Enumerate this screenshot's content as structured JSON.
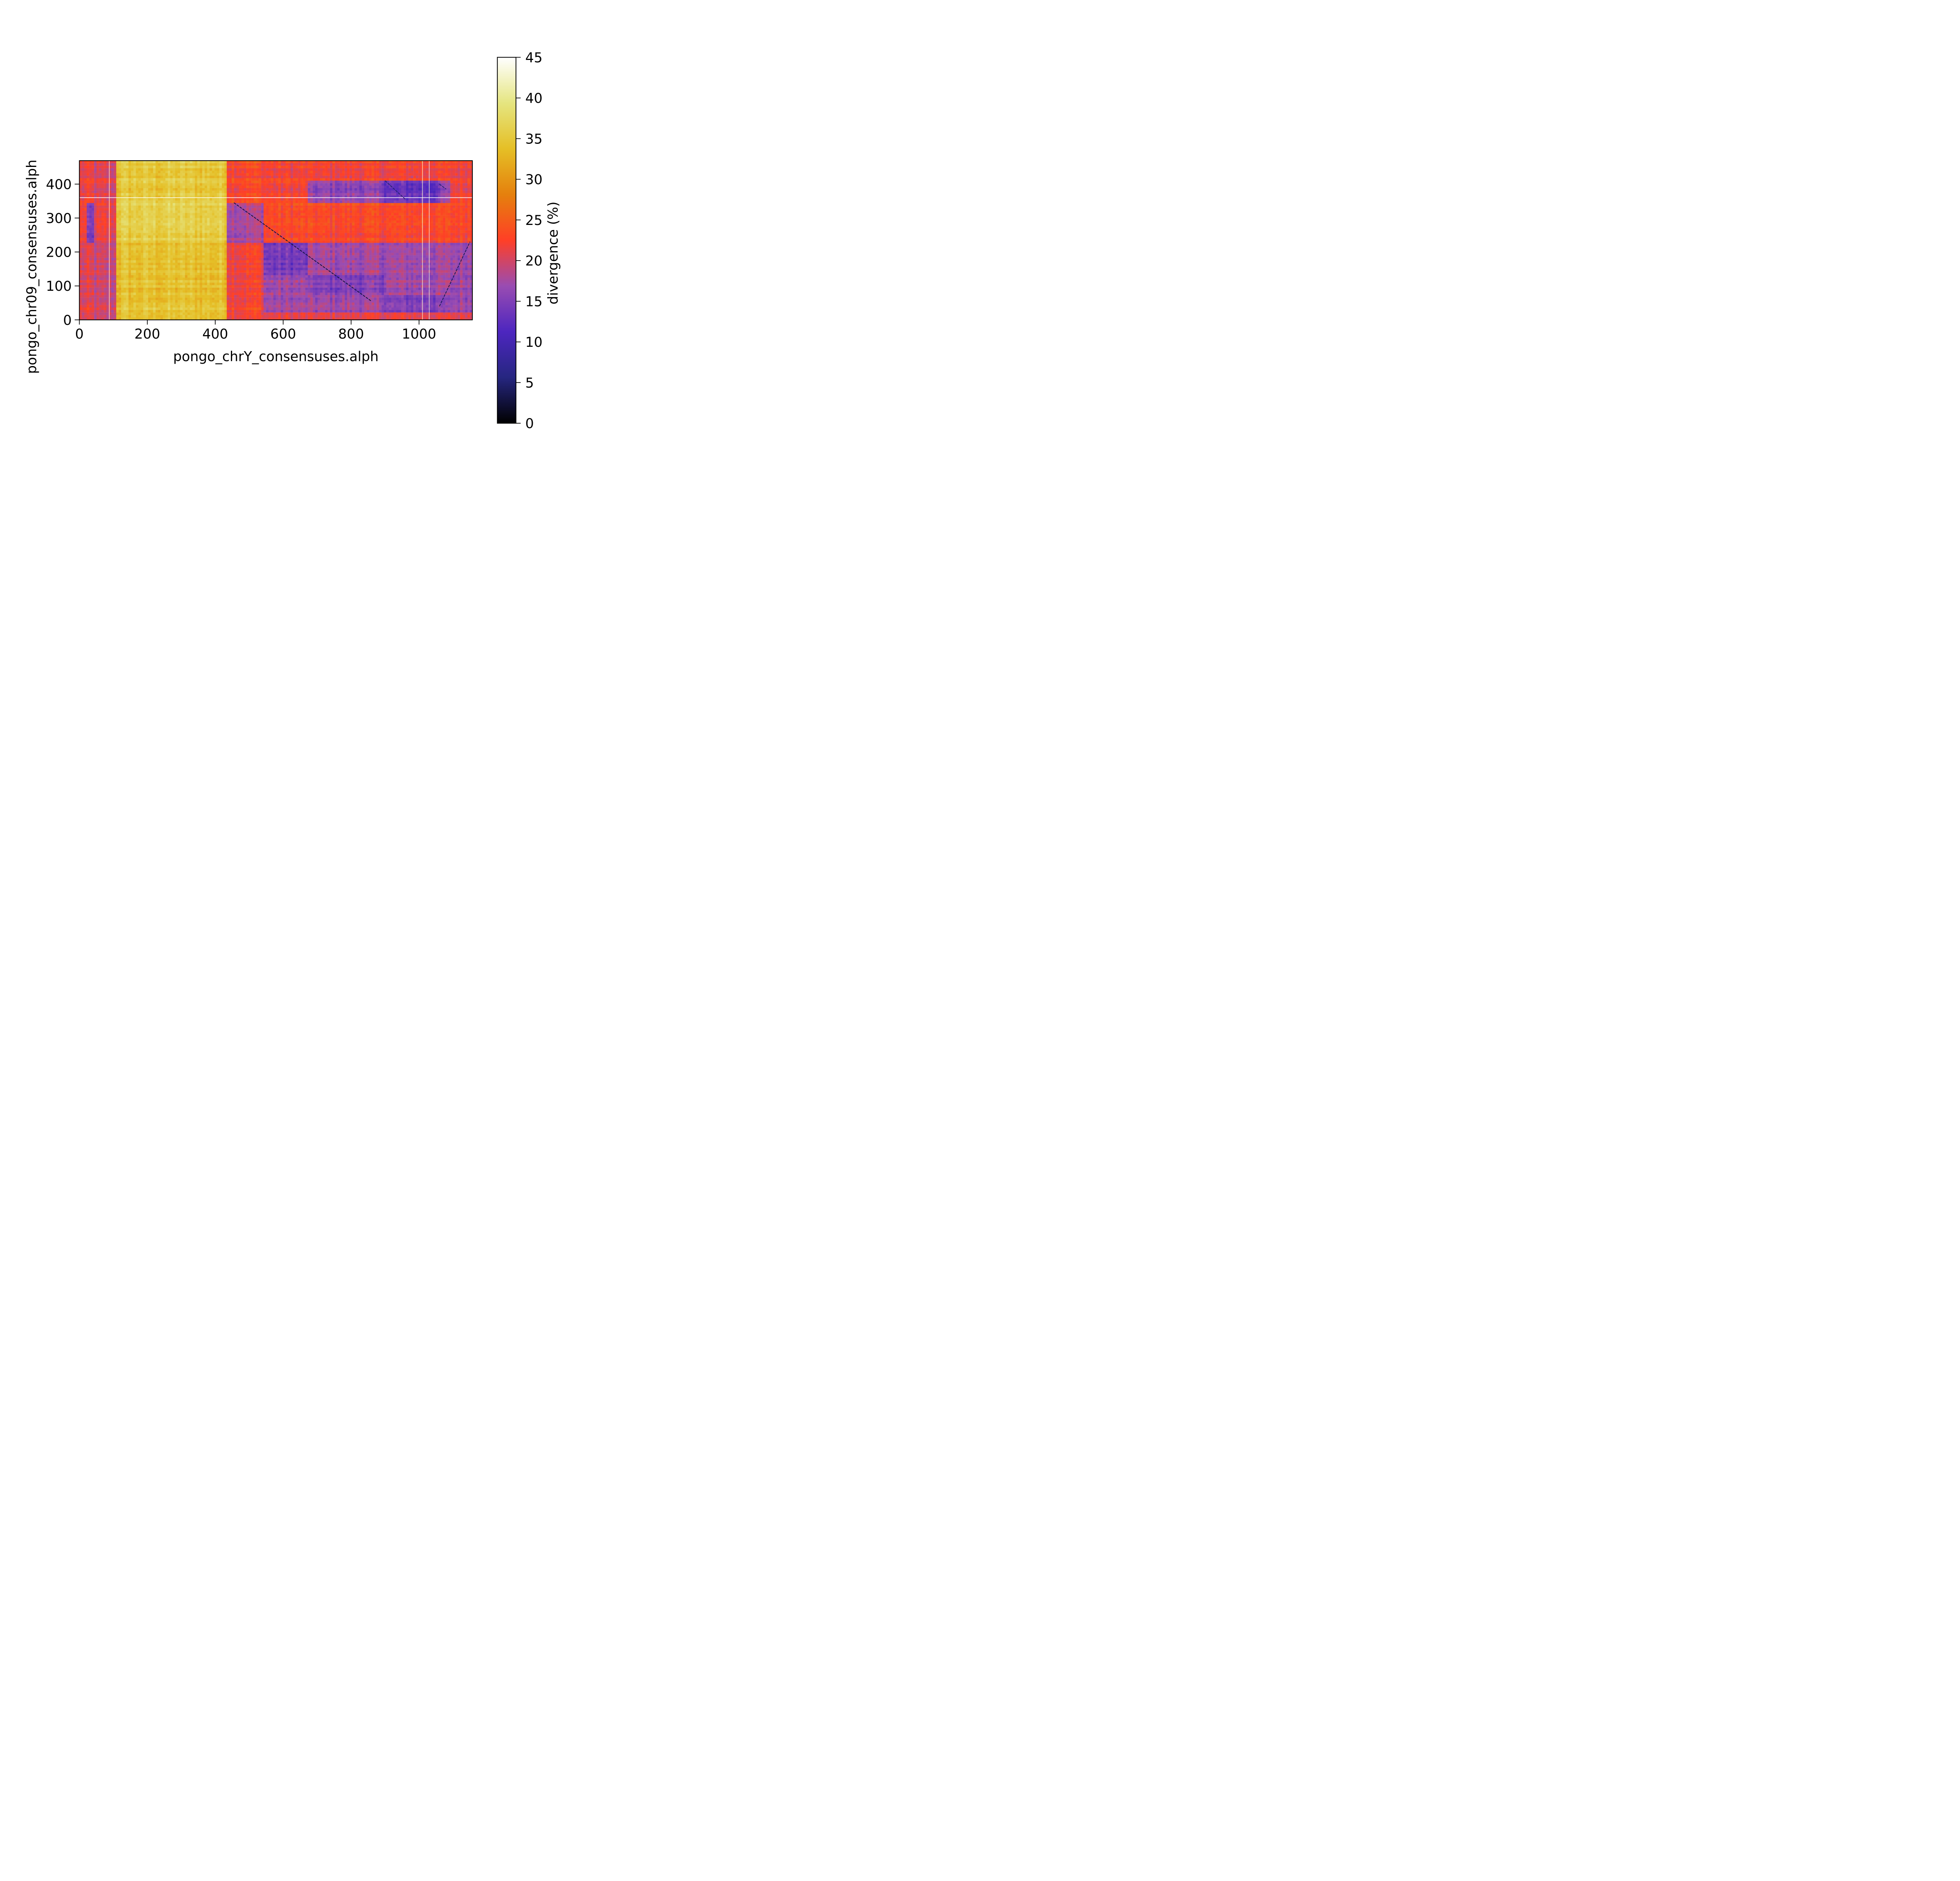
{
  "chart_data": {
    "type": "heatmap",
    "xlabel": "pongo_chrY_consensuses.alph",
    "ylabel": "pongo_chr09_consensuses.alph",
    "xlim": [
      0,
      1157
    ],
    "ylim": [
      0,
      469
    ],
    "x_ticks": [
      0,
      200,
      400,
      600,
      800,
      1000
    ],
    "y_ticks": [
      0,
      100,
      200,
      300,
      400
    ],
    "colorbar": {
      "label": "divergence (%)",
      "range": [
        0,
        45
      ],
      "ticks": [
        0,
        5,
        10,
        15,
        20,
        25,
        30,
        35,
        40,
        45
      ],
      "colormap": "CMRmap",
      "colors": [
        "#000000",
        "#262680",
        "#4d26bf",
        "#994cb2",
        "#ff3f26",
        "#e5800d",
        "#e5bf26",
        "#e5e580",
        "#ffffff"
      ]
    },
    "x_blocks": [
      {
        "x": [
          0,
          40
        ],
        "base": 21
      },
      {
        "x": [
          40,
          105
        ],
        "base": 20
      },
      {
        "x": [
          105,
          435
        ],
        "base": 35
      },
      {
        "x": [
          435,
          545
        ],
        "base": 23
      },
      {
        "x": [
          545,
          1157
        ],
        "base": 22
      }
    ],
    "y_blocks": [
      {
        "y": [
          0,
          40
        ],
        "offset": 0
      },
      {
        "y": [
          40,
          230
        ],
        "offset": -1
      },
      {
        "y": [
          230,
          345
        ],
        "offset": 1
      },
      {
        "y": [
          345,
          469
        ],
        "offset": 0
      }
    ],
    "low_regions": [
      {
        "x": [
          545,
          1157
        ],
        "y": [
          20,
          230
        ],
        "value": 17
      },
      {
        "x": [
          545,
          670
        ],
        "y": [
          130,
          230
        ],
        "value": 14
      },
      {
        "x": [
          670,
          900
        ],
        "y": [
          70,
          130
        ],
        "value": 15
      },
      {
        "x": [
          900,
          1090
        ],
        "y": [
          20,
          70
        ],
        "value": 15
      },
      {
        "x": [
          670,
          1090
        ],
        "y": [
          345,
          410
        ],
        "value": 16
      },
      {
        "x": [
          900,
          1060
        ],
        "y": [
          345,
          410
        ],
        "value": 13
      },
      {
        "x": [
          20,
          40
        ],
        "y": [
          230,
          345
        ],
        "value": 14
      },
      {
        "x": [
          435,
          545
        ],
        "y": [
          230,
          345
        ],
        "value": 18
      }
    ],
    "diagonals": [
      {
        "from": [
          455,
          345
        ],
        "to": [
          860,
          55
        ],
        "value": 3
      },
      {
        "from": [
          1060,
          40
        ],
        "to": [
          1150,
          230
        ],
        "value": 4
      },
      {
        "from": [
          900,
          410
        ],
        "to": [
          960,
          355
        ],
        "value": 5
      },
      {
        "from": [
          1060,
          400
        ],
        "to": [
          1080,
          385
        ],
        "value": 5
      }
    ],
    "bright_columns": [
      88,
      1010,
      1030
    ],
    "bright_rows": [
      360
    ]
  }
}
